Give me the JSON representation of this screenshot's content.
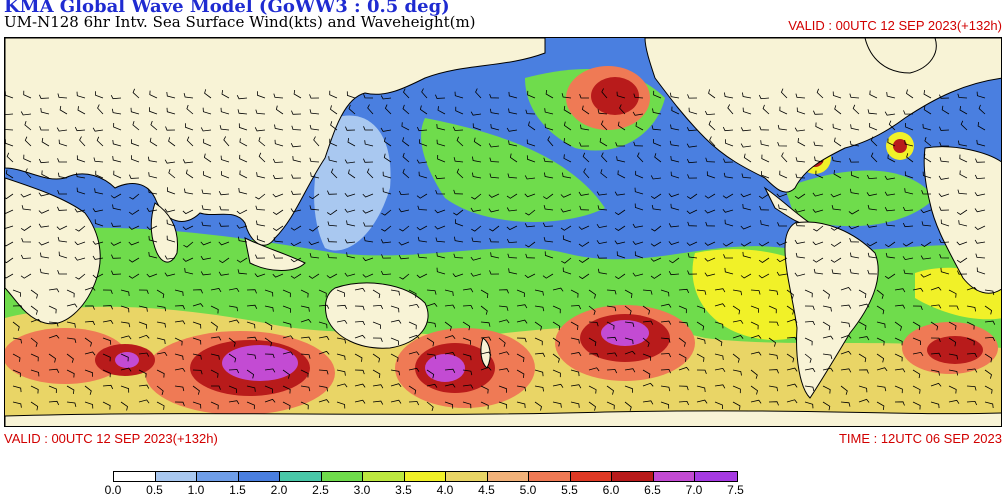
{
  "header": {
    "title": "KMA  Global Wave Model (GoWW3 : 0.5 deg)",
    "subtitle": "UM-N128  6hr Intv. Sea Surface Wind(kts) and Waveheight(m)",
    "valid_top": "VALID : 00UTC 12 SEP 2023(+132h)"
  },
  "footer": {
    "valid": "VALID : 00UTC 12 SEP 2023(+132h)",
    "time": "TIME : 12UTC 06 SEP 2023"
  },
  "colorbar": {
    "unit": "m",
    "labels": [
      "0.0",
      "0.5",
      "1.0",
      "1.5",
      "2.0",
      "2.5",
      "3.0",
      "3.5",
      "4.0",
      "4.5",
      "5.0",
      "5.5",
      "6.0",
      "6.5",
      "7.0",
      "7.5"
    ],
    "colors": [
      "#ffffff",
      "#a9c8f0",
      "#6f9ee8",
      "#4a7fe0",
      "#49c7a8",
      "#6fdc4c",
      "#bde840",
      "#f1f128",
      "#e9d566",
      "#f2b27a",
      "#ef7a55",
      "#df3a25",
      "#b81b1b",
      "#c34bd3",
      "#a63ae2"
    ]
  },
  "map": {
    "land_color": "#f8f3d6",
    "coast_color": "#000000"
  }
}
